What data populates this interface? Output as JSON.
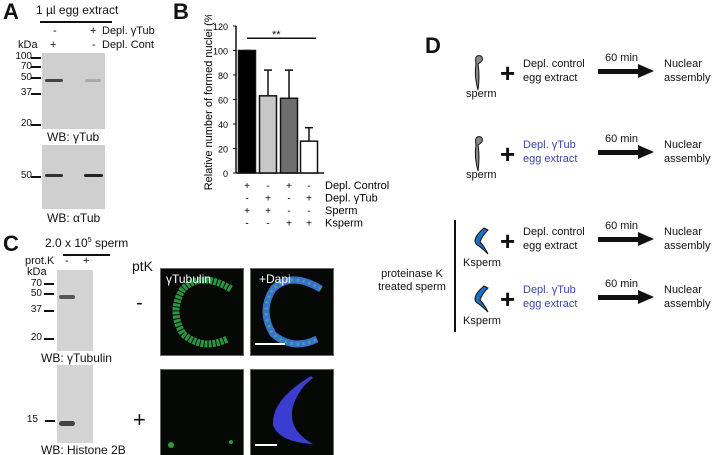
{
  "panel_a": {
    "label": "A",
    "title": "1 µl egg extract",
    "row1": {
      "label": "Depl. γTub",
      "lane1": "-",
      "lane2": "+"
    },
    "row2": {
      "label": "Depl. Cont",
      "lane1": "+",
      "lane2": "-"
    },
    "kda": "kDa",
    "blot1_markers": [
      "100",
      "70",
      "50",
      "37",
      "20"
    ],
    "blot1_caption": "WB: γTub",
    "blot2_markers": [
      "50"
    ],
    "blot2_caption": "WB: αTub"
  },
  "panel_b": {
    "label": "B",
    "significance": "**"
  },
  "chart_data": {
    "type": "bar",
    "ylabel": "Relative number of formed nuclei (%)",
    "ylim": [
      0,
      120
    ],
    "yticks": [
      "0",
      "20",
      "40",
      "60",
      "80",
      "100",
      "120"
    ],
    "values": [
      100,
      63,
      61,
      26
    ],
    "error_upper": [
      100,
      84,
      84,
      37
    ],
    "bar_colors": [
      "#000000",
      "#c8c8c8",
      "#6e6e6e",
      "#ffffff"
    ],
    "conditions": [
      {
        "label": "Depl. Control",
        "signs": [
          "+",
          "-",
          "+",
          "-"
        ]
      },
      {
        "label": "Depl. γTub",
        "signs": [
          "-",
          "+",
          "-",
          "+"
        ]
      },
      {
        "label": "Sperm",
        "signs": [
          "+",
          "+",
          "-",
          "-"
        ]
      },
      {
        "label": "Ksperm",
        "signs": [
          "-",
          "-",
          "+",
          "+"
        ]
      }
    ]
  },
  "panel_c": {
    "label": "C",
    "title_base": "2.0 x 10",
    "title_exp": "5",
    "title_rest": " sperm",
    "protk": "prot.K",
    "lane1": "-",
    "lane2": "+",
    "kda": "kDa",
    "blot1_markers": [
      "70",
      "50",
      "37",
      "20"
    ],
    "blot1_caption": "WB: γTubulin",
    "blot2_markers": [
      "15"
    ],
    "blot2_caption": "WB: Histone 2B",
    "ptk": "ptK",
    "row_minus": "-",
    "row_plus": "+",
    "img_label1": "γTubulin",
    "img_label2": "+Dapi"
  },
  "panel_d": {
    "label": "D",
    "side_label": "proteinase K treated sperm",
    "plus": "+",
    "rows": [
      {
        "cell": "sperm",
        "extract1": "Depl. control",
        "extract2": "egg extract",
        "time": "60 min",
        "result1": "Nuclear",
        "result2": "assembly",
        "depleted": false
      },
      {
        "cell": "sperm",
        "extract1": "Depl. γTub",
        "extract2": "egg extract",
        "time": "60 min",
        "result1": "Nuclear",
        "result2": "assembly",
        "depleted": true
      },
      {
        "cell": "Ksperm",
        "extract1": "Depl. control",
        "extract2": "egg extract",
        "time": "60 min",
        "result1": "Nuclear",
        "result2": "assembly",
        "depleted": false
      },
      {
        "cell": "Ksperm",
        "extract1": "Depl. γTub",
        "extract2": "egg extract",
        "time": "60 min",
        "result1": "Nuclear",
        "result2": "assembly",
        "depleted": true
      }
    ],
    "colors": {
      "depleted_text": "#3a46a8",
      "ksperm": "#1f6fc0",
      "sperm": "#8a8a8a"
    }
  }
}
